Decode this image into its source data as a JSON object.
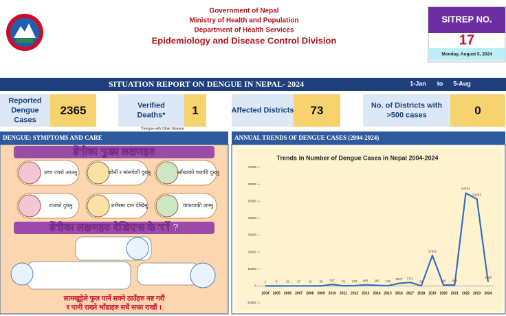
{
  "header": {
    "lines": [
      "Government of Nepal",
      "Ministry of Health and Population",
      "Department of Health Services",
      "Epidemiology and Disease Control Division"
    ],
    "sitrep_label": "SITREP NO.",
    "sitrep_number": "17",
    "date": "Monday, August 5, 2024"
  },
  "banner": {
    "title": "SITUATION REPORT ON DENGUE IN NEPAL- 2024",
    "from": "1-Jan",
    "to_word": "to",
    "to": "5-Aug"
  },
  "stats": [
    {
      "label": [
        "Reported",
        "Dengue",
        "Cases"
      ],
      "value": 2365
    },
    {
      "label": [
        "Verified",
        "Deaths*"
      ],
      "value": 1
    },
    {
      "label": [
        "Affected Districts"
      ],
      "value": 73
    },
    {
      "label": [
        "No. of Districts with",
        ">500 cases"
      ],
      "value": 0
    }
  ],
  "footnote": "*Dengue with Other Disease",
  "symptoms": {
    "title": "DENGUE: SYMPTOMS AND CARE",
    "heading1": "डेंगीका मुख्य लक्षणहरु",
    "items": [
      "उच्च ज्वरो आउनु",
      "जोर्नी र मांसपेशी दुख्नु",
      "आँखाको पछाडि दुख्नु",
      "टाउको दुख्नु",
      "शरीरमा दाग देखिनु",
      "वाकवाकी लाग्नु"
    ],
    "heading2": "डेंगीका लक्षणहरु देखिएमा के गर्ने ?",
    "bottom": [
      "लामखुट्टेले फुल पार्ने सक्ने ठाउँहरु नष्ट गरौं",
      "र पानी राख्ने भाँडाहरु सधैं सफा राखौं ।"
    ]
  },
  "trends": {
    "title": "ANNUAL TRENDS OF DENGUE CASES (2004-2024)",
    "chart": {
      "type": "line",
      "title": "Trends in Number of Dengue Cases in Nepal 2004-2024",
      "categories": [
        "2004",
        "2005",
        "2006",
        "2007",
        "2008",
        "2009",
        "2010",
        "2011",
        "2012",
        "2013",
        "2014",
        "2015",
        "2016",
        "2017",
        "2018",
        "2019",
        "2020",
        "2021",
        "2022",
        "2023",
        "2024"
      ],
      "values": [
        1,
        8,
        32,
        27,
        18,
        38,
        917,
        79,
        183,
        684,
        356,
        135,
        1527,
        2111,
        83,
        17992,
        530,
        540,
        54784,
        51243,
        2365
      ],
      "color": "#2e6fc4",
      "ylim": [
        -10000,
        70000
      ],
      "yticks": [
        -10000,
        0,
        10000,
        20000,
        30000,
        40000,
        50000,
        60000,
        70000
      ]
    }
  }
}
